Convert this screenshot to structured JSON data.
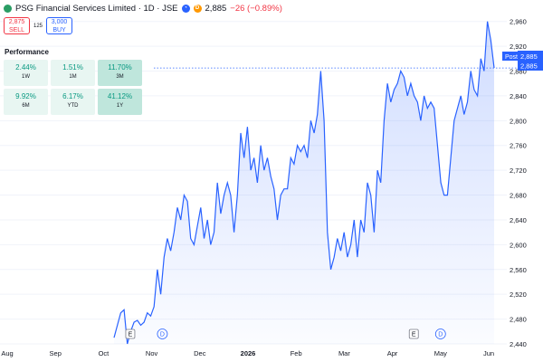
{
  "header": {
    "title": "PSG Financial Services Limited · 1D · JSE",
    "last": "2,885",
    "change": "−26 (−0.89%)"
  },
  "trade": {
    "sell_price": "2,875",
    "sell_label": "SELL",
    "spread": "125",
    "buy_price": "3,000",
    "buy_label": "BUY"
  },
  "performance": {
    "title": "Performance",
    "cells": [
      {
        "value": "2.44%",
        "period": "1W",
        "shade": "light"
      },
      {
        "value": "1.51%",
        "period": "1M",
        "shade": "light"
      },
      {
        "value": "11.70%",
        "period": "3M",
        "shade": "mid"
      },
      {
        "value": "9.92%",
        "period": "6M",
        "shade": "light"
      },
      {
        "value": "6.17%",
        "period": "YTD",
        "shade": "light"
      },
      {
        "value": "41.12%",
        "period": "1Y",
        "shade": "mid"
      }
    ]
  },
  "price_labels": {
    "post_tag": "Post",
    "post_price": "2,885",
    "last_price": "2,885"
  },
  "colors": {
    "line": "#2962ff",
    "up": "#089981",
    "down": "#f23645"
  },
  "chart_data": {
    "type": "area",
    "ylim": [
      2440,
      2980
    ],
    "yticks": [
      2440,
      2480,
      2520,
      2560,
      2600,
      2640,
      2680,
      2720,
      2760,
      2800,
      2840,
      2880,
      2920,
      2960
    ],
    "month_ticks": [
      {
        "label": "Aug",
        "day": 1
      },
      {
        "label": "Sep",
        "day": 10
      },
      {
        "label": "Oct",
        "day": 19
      },
      {
        "label": "Nov",
        "day": 28
      },
      {
        "label": "Dec",
        "day": 37
      },
      {
        "label": "2026",
        "day": 46
      },
      {
        "label": "Feb",
        "day": 55
      },
      {
        "label": "Mar",
        "day": 64
      },
      {
        "label": "Apr",
        "day": 73
      },
      {
        "label": "May",
        "day": 82
      },
      {
        "label": "Jun",
        "day": 91
      }
    ],
    "markers": [
      {
        "label": "E",
        "day": 24
      },
      {
        "label": "D",
        "day": 30
      },
      {
        "label": "E",
        "day": 77
      },
      {
        "label": "D",
        "day": 82
      }
    ],
    "series": [
      {
        "values": [
          2450,
          2470,
          2490,
          2495,
          2440,
          2460,
          2475,
          2478,
          2470,
          2475,
          2490,
          2485,
          2500,
          2560,
          2520,
          2580,
          2610,
          2590,
          2620,
          2660,
          2640,
          2680,
          2670,
          2610,
          2600,
          2630,
          2660,
          2610,
          2640,
          2600,
          2620,
          2700,
          2650,
          2680,
          2700,
          2680,
          2620,
          2680,
          2780,
          2740,
          2790,
          2720,
          2740,
          2700,
          2760,
          2720,
          2740,
          2710,
          2690,
          2640,
          2680,
          2690,
          2690,
          2740,
          2730,
          2760,
          2750,
          2760,
          2740,
          2800,
          2780,
          2810,
          2880,
          2800,
          2620,
          2560,
          2580,
          2610,
          2590,
          2620,
          2580,
          2600,
          2640,
          2580,
          2640,
          2620,
          2700,
          2680,
          2620,
          2720,
          2700,
          2800,
          2860,
          2830,
          2850,
          2860,
          2880,
          2870,
          2840,
          2860,
          2840,
          2830,
          2800,
          2840,
          2820,
          2830,
          2820,
          2760,
          2700,
          2680,
          2680,
          2740,
          2800,
          2820,
          2840,
          2810,
          2830,
          2880,
          2850,
          2840,
          2900,
          2880,
          2960,
          2930,
          2885
        ]
      }
    ]
  }
}
